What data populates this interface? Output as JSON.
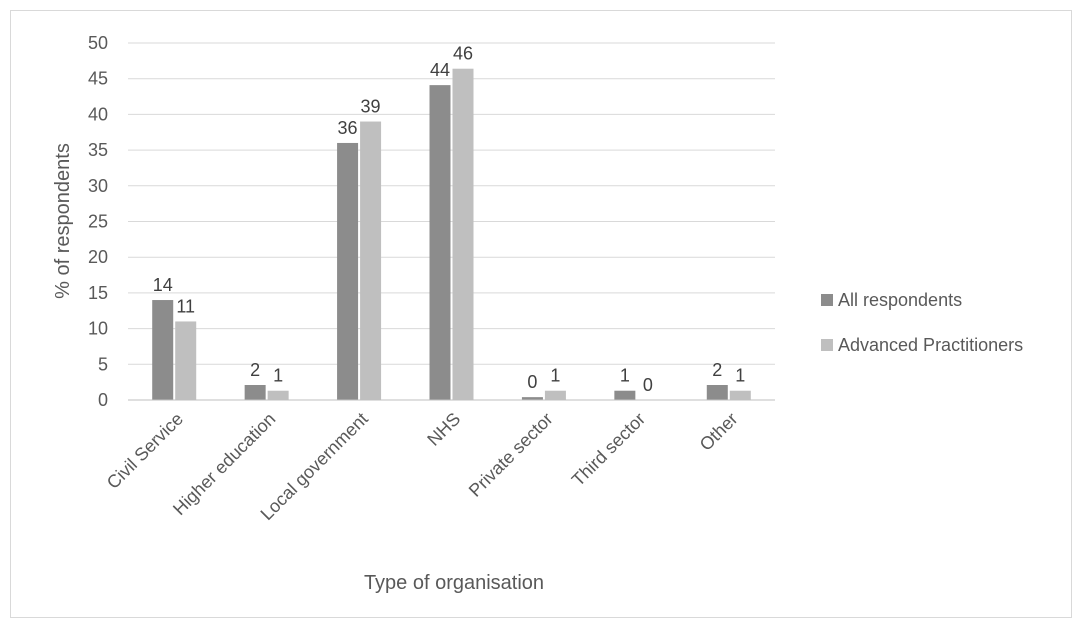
{
  "chart_data": {
    "type": "bar",
    "title": "",
    "xlabel": "Type of organisation",
    "ylabel": "% of respondents",
    "ylim": [
      0,
      50
    ],
    "yticks": [
      0,
      5,
      10,
      15,
      20,
      25,
      30,
      35,
      40,
      45,
      50
    ],
    "grid": true,
    "legend_position": "right",
    "categories": [
      "Civil Service",
      "Higher education",
      "Local government",
      "NHS",
      "Private sector",
      "Third sector",
      "Other"
    ],
    "series": [
      {
        "name": "All respondents",
        "color": "#8c8c8c",
        "values": [
          14,
          2.1,
          36,
          44.1,
          0.4,
          1.3,
          2.1
        ],
        "labels": [
          "14",
          "2",
          "36",
          "44",
          "0",
          "1",
          "2"
        ]
      },
      {
        "name": "Advanced Practitioners",
        "color": "#bfbfbf",
        "values": [
          11,
          1.3,
          39,
          46.4,
          1.3,
          0,
          1.3
        ],
        "labels": [
          "11",
          "1",
          "39",
          "46",
          "1",
          "0",
          "1"
        ]
      }
    ]
  }
}
